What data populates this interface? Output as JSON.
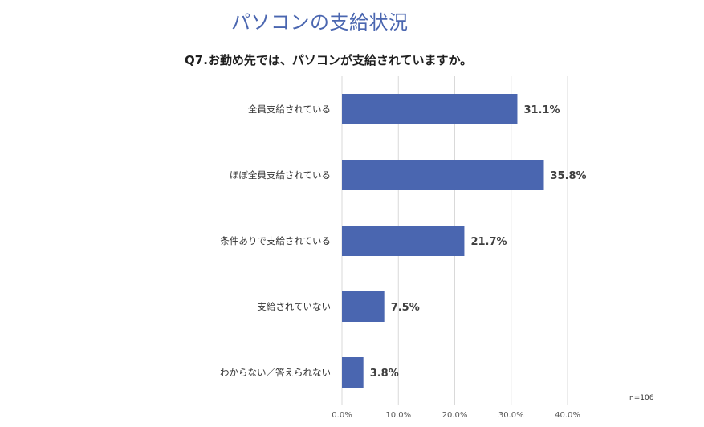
{
  "page": {
    "title": "パソコンの支給状況"
  },
  "chart_data": {
    "type": "bar",
    "orientation": "horizontal",
    "title": "Q7.お勤め先では、パソコンが支給されていますか。",
    "categories": [
      "全員支給されている",
      "ほぼ全員支給されている",
      "条件ありで支給されている",
      "支給されていない",
      "わからない／答えられない"
    ],
    "values": [
      31.1,
      35.8,
      21.7,
      7.5,
      3.8
    ],
    "data_labels": [
      "31.1%",
      "35.8%",
      "21.7%",
      "7.5%",
      "3.8%"
    ],
    "xlim": [
      0,
      40
    ],
    "x_ticks": [
      "0.0%",
      "10.0%",
      "20.0%",
      "30.0%",
      "40.0%"
    ],
    "x_tick_values": [
      0,
      10,
      20,
      30,
      40
    ],
    "grid": true,
    "note": "n=106",
    "colors": {
      "bar": "#4a66b0",
      "title": "#4a66b0",
      "grid": "#d9d9d9"
    }
  }
}
